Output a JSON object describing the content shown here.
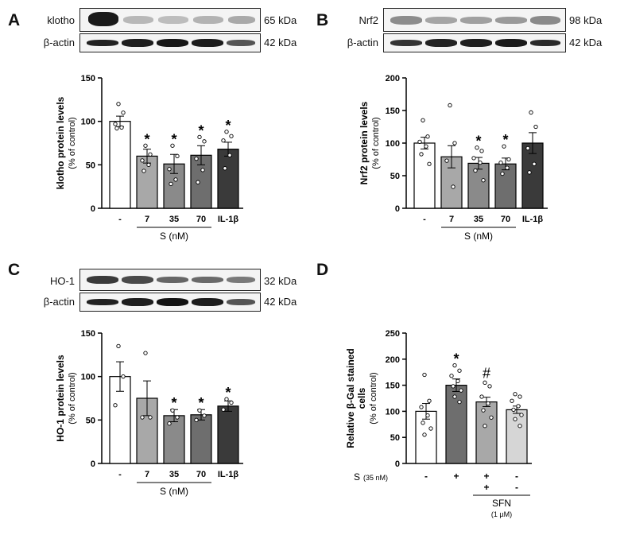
{
  "panels": {
    "A": {
      "letter": "A",
      "blot_label": "klotho",
      "blot_kda": "65 kDa",
      "actin_label": "β-actin",
      "actin_kda": "42 kDa"
    },
    "B": {
      "letter": "B",
      "blot_label": "Nrf2",
      "blot_kda": "98 kDa",
      "actin_label": "β-actin",
      "actin_kda": "42 kDa"
    },
    "C": {
      "letter": "C",
      "blot_label": "HO-1",
      "blot_kda": "32 kDa",
      "actin_label": "β-actin",
      "actin_kda": "42 kDa"
    },
    "D": {
      "letter": "D"
    }
  },
  "colors": {
    "control": "#ffffff",
    "light": "#a8a8a8",
    "mid": "#8a8a8a",
    "dark": "#6e6e6e",
    "il1b": "#3a3a3a",
    "sfn": "#d6d6d6",
    "outline": "#000000"
  },
  "chart_data": [
    {
      "type": "bar",
      "panel": "A",
      "categories": [
        "-",
        "7",
        "35",
        "70",
        "IL-1β"
      ],
      "group_label": "S (nM)",
      "values": [
        100,
        60,
        51,
        61,
        68
      ],
      "errors": [
        6,
        8,
        11,
        11,
        8
      ],
      "significance": [
        "",
        "*",
        "*",
        "*",
        "*"
      ],
      "points": [
        [
          120,
          110,
          97,
          93,
          92
        ],
        [
          72,
          62,
          55,
          50,
          43
        ],
        [
          72,
          60,
          45,
          33,
          28
        ],
        [
          82,
          77,
          57,
          44,
          30
        ],
        [
          88,
          83,
          78,
          61,
          46
        ]
      ],
      "ylabel": "klotho protein levels",
      "ylabel2": "(% of control)",
      "ylim": [
        0,
        150
      ],
      "yticks": [
        0,
        50,
        100,
        150
      ]
    },
    {
      "type": "bar",
      "panel": "B",
      "categories": [
        "-",
        "7",
        "35",
        "70",
        "IL-1β"
      ],
      "group_label": "S (nM)",
      "values": [
        100,
        79,
        69,
        68,
        100
      ],
      "errors": [
        9,
        17,
        9,
        9,
        16
      ],
      "significance": [
        "",
        "",
        "*",
        "*",
        ""
      ],
      "points": [
        [
          135,
          110,
          102,
          95,
          83,
          68
        ],
        [
          158,
          100,
          73,
          33
        ],
        [
          93,
          88,
          77,
          70,
          58,
          43
        ],
        [
          95,
          75,
          70,
          62,
          53
        ],
        [
          147,
          125,
          92,
          68,
          55
        ]
      ],
      "ylabel": "Nrf2 protein levels",
      "ylabel2": "(% of control)",
      "ylim": [
        0,
        200
      ],
      "yticks": [
        0,
        50,
        100,
        150,
        200
      ]
    },
    {
      "type": "bar",
      "panel": "C",
      "categories": [
        "-",
        "7",
        "35",
        "70",
        "IL-1β"
      ],
      "group_label": "S (nM)",
      "values": [
        100,
        75,
        55,
        56,
        66
      ],
      "errors": [
        17,
        20,
        7,
        6,
        6
      ],
      "significance": [
        "",
        "",
        "*",
        "*",
        "*"
      ],
      "points": [
        [
          135,
          100,
          67
        ],
        [
          127,
          53,
          53
        ],
        [
          61,
          53,
          46
        ],
        [
          61,
          55,
          50
        ],
        [
          74,
          70,
          62
        ]
      ],
      "ylabel": "HO-1 protein levels",
      "ylabel2": "(% of control)",
      "ylim": [
        0,
        150
      ],
      "yticks": [
        0,
        50,
        100,
        150
      ]
    },
    {
      "type": "bar",
      "panel": "D",
      "categories": [
        "-",
        "+",
        "+",
        "-"
      ],
      "row_label": "S",
      "row_label_small": "(35 nM)",
      "sfn_label": "SFN",
      "sfn_conc": "(1 µM)",
      "sfn_signs": [
        "+",
        "-"
      ],
      "values": [
        100,
        150,
        118,
        103
      ],
      "errors": [
        15,
        12,
        9,
        7
      ],
      "significance": [
        "",
        "*",
        "#",
        ""
      ],
      "points": [
        [
          170,
          120,
          108,
          92,
          78,
          67,
          55
        ],
        [
          188,
          178,
          168,
          158,
          148,
          140,
          128,
          118
        ],
        [
          155,
          148,
          128,
          115,
          102,
          88,
          72
        ],
        [
          133,
          128,
          120,
          110,
          103,
          93,
          85,
          72
        ]
      ],
      "ylabel": "Relative β-Gal stained",
      "ylabel2": "cells",
      "ylabel3": "(% of control)",
      "ylim": [
        0,
        250
      ],
      "yticks": [
        0,
        50,
        100,
        150,
        200,
        250
      ]
    }
  ]
}
